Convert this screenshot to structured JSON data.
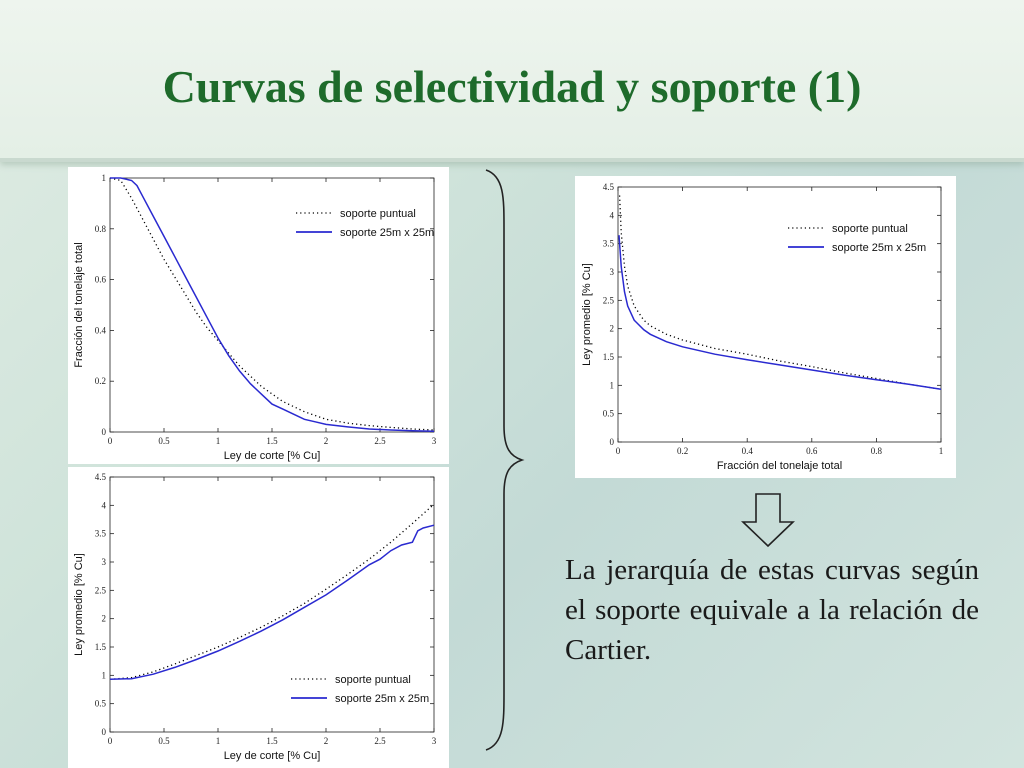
{
  "slide": {
    "title": "Curvas de selectividad y soporte (1)",
    "caption": "La jerarquía de estas curvas según el soporte equivale a la relación de Cartier."
  },
  "colors": {
    "title": "#1e6b2b",
    "series_point": "#000000",
    "series_block": "#2a2ad0"
  },
  "chart_data": [
    {
      "id": "chart1",
      "type": "line",
      "xlabel": "Ley de corte [% Cu]",
      "ylabel": "Fracción del tonelaje total",
      "xlim": [
        0,
        3
      ],
      "ylim": [
        0,
        1
      ],
      "xticks": [
        0,
        0.5,
        1,
        1.5,
        2,
        2.5,
        3
      ],
      "xtick_labels": [
        "0",
        "0.5",
        "1",
        "1.5",
        "2",
        "2.5",
        "3"
      ],
      "yticks": [
        0,
        0.2,
        0.4,
        0.6,
        0.8,
        1
      ],
      "ytick_labels": [
        "0",
        "0.2",
        "0.4",
        "0.6",
        "0.8",
        "1"
      ],
      "legend_position": "top-right",
      "series": [
        {
          "name": "soporte puntual",
          "style": "dotted",
          "x": [
            0,
            0.1,
            0.2,
            0.3,
            0.4,
            0.5,
            0.6,
            0.7,
            0.8,
            0.9,
            1.0,
            1.1,
            1.2,
            1.3,
            1.4,
            1.5,
            1.6,
            1.7,
            1.8,
            1.9,
            2.0,
            2.2,
            2.4,
            2.6,
            2.8,
            3.0
          ],
          "y": [
            1.0,
            0.99,
            0.92,
            0.84,
            0.76,
            0.68,
            0.61,
            0.54,
            0.47,
            0.41,
            0.36,
            0.31,
            0.26,
            0.22,
            0.18,
            0.15,
            0.12,
            0.1,
            0.08,
            0.065,
            0.05,
            0.035,
            0.025,
            0.018,
            0.012,
            0.008
          ]
        },
        {
          "name": "soporte 25m x 25m",
          "style": "solid",
          "x": [
            0,
            0.1,
            0.2,
            0.25,
            0.3,
            0.4,
            0.5,
            0.6,
            0.7,
            0.8,
            0.9,
            1.0,
            1.1,
            1.2,
            1.3,
            1.4,
            1.5,
            1.6,
            1.7,
            1.8,
            1.9,
            2.0,
            2.2,
            2.4,
            2.6,
            2.8,
            3.0
          ],
          "y": [
            1.0,
            1.0,
            0.99,
            0.97,
            0.93,
            0.85,
            0.77,
            0.69,
            0.61,
            0.53,
            0.45,
            0.37,
            0.3,
            0.24,
            0.19,
            0.15,
            0.11,
            0.09,
            0.07,
            0.05,
            0.04,
            0.03,
            0.02,
            0.012,
            0.008,
            0.005,
            0.003
          ]
        }
      ]
    },
    {
      "id": "chart2",
      "type": "line",
      "xlabel": "Ley de corte [% Cu]",
      "ylabel": "Ley promedio [% Cu]",
      "xlim": [
        0,
        3
      ],
      "ylim": [
        0,
        4.5
      ],
      "xticks": [
        0,
        0.5,
        1,
        1.5,
        2,
        2.5,
        3
      ],
      "xtick_labels": [
        "0",
        "0.5",
        "1",
        "1.5",
        "2",
        "2.5",
        "3"
      ],
      "yticks": [
        0,
        0.5,
        1,
        1.5,
        2,
        2.5,
        3,
        3.5,
        4,
        4.5
      ],
      "ytick_labels": [
        "0",
        "0.5",
        "1",
        "1.5",
        "2",
        "2.5",
        "3",
        "3.5",
        "4",
        "4.5"
      ],
      "legend_position": "bottom-right",
      "series": [
        {
          "name": "soporte puntual",
          "style": "dotted",
          "x": [
            0,
            0.2,
            0.4,
            0.6,
            0.8,
            1.0,
            1.2,
            1.4,
            1.6,
            1.8,
            2.0,
            2.2,
            2.4,
            2.6,
            2.8,
            3.0
          ],
          "y": [
            0.93,
            0.96,
            1.06,
            1.2,
            1.35,
            1.5,
            1.67,
            1.85,
            2.05,
            2.27,
            2.52,
            2.78,
            3.05,
            3.35,
            3.68,
            4.02
          ]
        },
        {
          "name": "soporte 25m x 25m",
          "style": "solid",
          "x": [
            0,
            0.2,
            0.4,
            0.6,
            0.8,
            1.0,
            1.2,
            1.4,
            1.6,
            1.8,
            2.0,
            2.2,
            2.4,
            2.5,
            2.6,
            2.7,
            2.8,
            2.85,
            2.9,
            3.0
          ],
          "y": [
            0.93,
            0.94,
            1.02,
            1.14,
            1.28,
            1.43,
            1.6,
            1.78,
            1.98,
            2.2,
            2.42,
            2.68,
            2.95,
            3.05,
            3.2,
            3.3,
            3.35,
            3.55,
            3.6,
            3.65
          ]
        }
      ]
    },
    {
      "id": "chart3",
      "type": "line",
      "xlabel": "Fracción del tonelaje total",
      "ylabel": "Ley promedio [% Cu]",
      "xlim": [
        0,
        1
      ],
      "ylim": [
        0,
        4.5
      ],
      "xticks": [
        0,
        0.2,
        0.4,
        0.6,
        0.8,
        1
      ],
      "xtick_labels": [
        "0",
        "0.2",
        "0.4",
        "0.6",
        "0.8",
        "1"
      ],
      "yticks": [
        0,
        0.5,
        1,
        1.5,
        2,
        2.5,
        3,
        3.5,
        4,
        4.5
      ],
      "ytick_labels": [
        "0",
        "0.5",
        "1",
        "1.5",
        "2",
        "2.5",
        "3",
        "3.5",
        "4",
        "4.5"
      ],
      "legend_position": "top-right",
      "series": [
        {
          "name": "soporte puntual",
          "style": "dotted",
          "x": [
            0.005,
            0.01,
            0.02,
            0.03,
            0.05,
            0.08,
            0.1,
            0.15,
            0.2,
            0.3,
            0.4,
            0.5,
            0.6,
            0.7,
            0.8,
            0.9,
            1.0
          ],
          "y": [
            4.35,
            3.7,
            3.1,
            2.75,
            2.4,
            2.15,
            2.05,
            1.9,
            1.8,
            1.65,
            1.55,
            1.43,
            1.33,
            1.22,
            1.12,
            1.02,
            0.93
          ]
        },
        {
          "name": "soporte 25m x 25m",
          "style": "solid",
          "x": [
            0.003,
            0.01,
            0.02,
            0.03,
            0.05,
            0.08,
            0.1,
            0.15,
            0.2,
            0.3,
            0.4,
            0.5,
            0.6,
            0.7,
            0.8,
            0.9,
            1.0
          ],
          "y": [
            3.65,
            3.1,
            2.65,
            2.4,
            2.15,
            1.98,
            1.9,
            1.77,
            1.68,
            1.55,
            1.45,
            1.36,
            1.27,
            1.18,
            1.1,
            1.02,
            0.93
          ]
        }
      ]
    }
  ]
}
